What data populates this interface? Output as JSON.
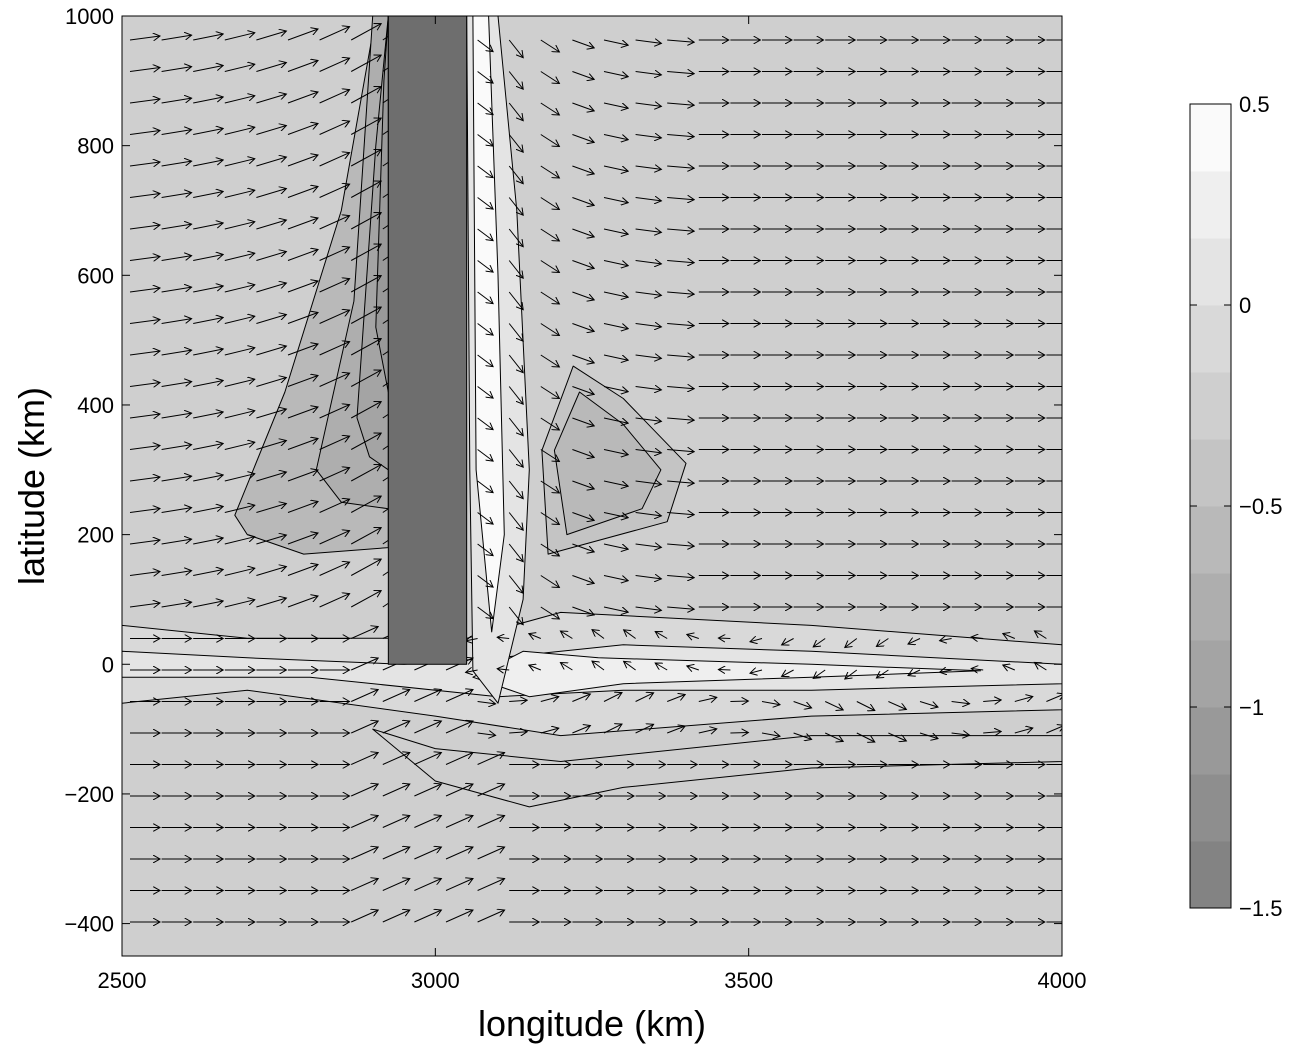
{
  "chart_data": {
    "type": "contour-quiver",
    "title": "",
    "xlabel": "longitude (km)",
    "ylabel": "latitude (km)",
    "xlim": [
      2500,
      4000
    ],
    "ylim": [
      -450,
      1000
    ],
    "xticks": [
      2500,
      3000,
      3500,
      4000
    ],
    "xtick_labels": [
      "2500",
      "3000",
      "3500",
      "4000"
    ],
    "yticks": [
      -400,
      -200,
      0,
      200,
      400,
      600,
      800,
      1000
    ],
    "ytick_labels": [
      "−400",
      "−200",
      "0",
      "200",
      "400",
      "600",
      "800",
      "1000"
    ],
    "obstacle": {
      "x": [
        2925,
        3050
      ],
      "y": [
        0,
        1000
      ],
      "color": "#6e6e6e"
    },
    "colorbar": {
      "range": [
        -1.5,
        0.5
      ],
      "ticks": [
        0.5,
        0,
        -0.5,
        -1,
        -1.5
      ],
      "tick_labels": [
        "0.5",
        "0",
        "−0.5",
        "−1",
        "−1.5"
      ],
      "levels": 12,
      "color_top": "#ffffff",
      "color_bottom": "#7e7e7e"
    },
    "background_level": -0.3,
    "grid": false
  }
}
